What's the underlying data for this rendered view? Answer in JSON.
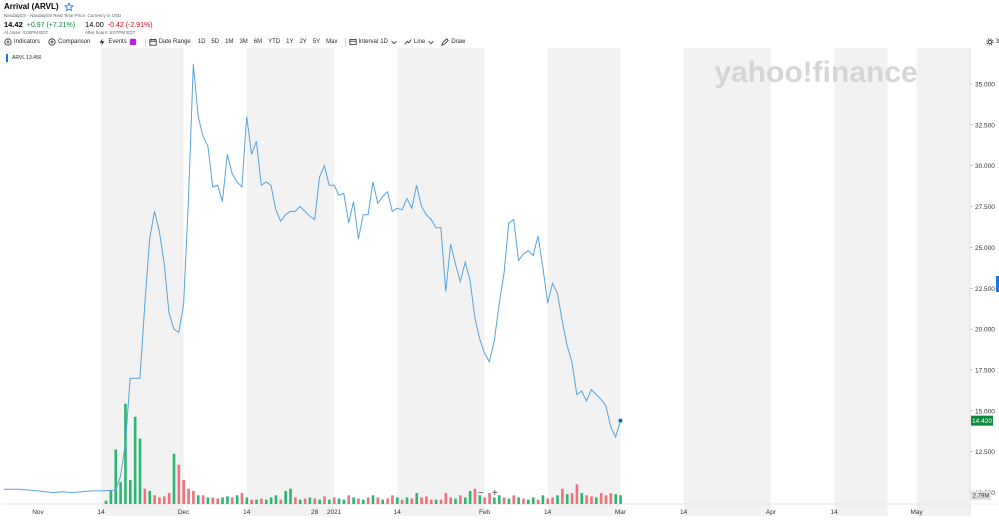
{
  "header": {
    "title": "Arrival (ARVL)",
    "source_line": "NasdaqGS - NasdaqGS Real Time Price. Currency in USD",
    "price": "14.42",
    "change": "+0.97 (+7.21%)",
    "close_note": "At close: 4:00PM EDT",
    "after_price": "14.00",
    "after_change": "-0.42 (-2.91%)",
    "after_note": "After hours: 5:07PM EDT"
  },
  "toolbar": {
    "indicators": "Indicators",
    "comparison": "Comparison",
    "events": "Events",
    "date_range": "Date Range",
    "ranges": [
      "1D",
      "5D",
      "1M",
      "3M",
      "6M",
      "YTD",
      "1Y",
      "2Y",
      "5Y",
      "Max"
    ],
    "interval_label": "Interval",
    "interval_value": "1D",
    "chart_type": "Line",
    "draw": "Draw",
    "settings_glyph": "3"
  },
  "symbol_badge": "ARVL 13.450",
  "watermark": "yahoo!finance",
  "zoom": {
    "minus": "−",
    "plus": "+"
  },
  "colors": {
    "line": "#5aa3dc",
    "up": "#2bb673",
    "down": "#f1707a",
    "last_price": "#0a8a3c",
    "shade": "#f2f2f2"
  },
  "chart_data": {
    "type": "line",
    "y_ticks": [
      "35.000",
      "32.500",
      "30.000",
      "27.500",
      "25.000",
      "22.500",
      "20.000",
      "17.500",
      "15.000",
      "12.500",
      "10.000"
    ],
    "y_tick_values": [
      35,
      32.5,
      30,
      27.5,
      25,
      22.5,
      20,
      17.5,
      15,
      12.5,
      10
    ],
    "ylim": [
      9.3,
      37.2
    ],
    "x_tick_labels": [
      "Nov",
      "14",
      "Dec",
      "14",
      "28",
      "2021",
      "14",
      "Feb",
      "14",
      "Mar",
      "14",
      "Apr",
      "14",
      "May"
    ],
    "x_tick_days": [
      0,
      13,
      30,
      43,
      57,
      61,
      74,
      92,
      105,
      120,
      133,
      151,
      164,
      181
    ],
    "xlim": [
      -7,
      192
    ],
    "last_price_label": "14.420",
    "volume_label": "2.79M",
    "shaded_day_ranges": [
      [
        13,
        30
      ],
      [
        43,
        61
      ],
      [
        74,
        92
      ],
      [
        105,
        120
      ],
      [
        133,
        151
      ],
      [
        164,
        175
      ],
      [
        181,
        192
      ]
    ],
    "prices": [
      [
        -7,
        10.2
      ],
      [
        -4,
        10.2
      ],
      [
        0,
        10.1
      ],
      [
        3,
        10.0
      ],
      [
        5,
        10.05
      ],
      [
        7,
        10.0
      ],
      [
        9,
        10.05
      ],
      [
        11,
        10.1
      ],
      [
        13,
        10.1
      ],
      [
        16,
        10.15
      ],
      [
        17,
        11.0
      ],
      [
        18,
        13.0
      ],
      [
        19,
        17.0
      ],
      [
        21,
        17.0
      ],
      [
        22,
        21.5
      ],
      [
        23,
        25.5
      ],
      [
        24,
        27.2
      ],
      [
        25,
        26.0
      ],
      [
        26,
        24.0
      ],
      [
        27,
        21.0
      ],
      [
        28,
        20.0
      ],
      [
        29,
        19.8
      ],
      [
        30,
        21.5
      ],
      [
        31,
        28.0
      ],
      [
        32,
        36.2
      ],
      [
        33,
        33.0
      ],
      [
        34,
        31.8
      ],
      [
        35,
        31.2
      ],
      [
        36,
        28.7
      ],
      [
        37,
        28.8
      ],
      [
        38,
        27.8
      ],
      [
        39,
        30.7
      ],
      [
        40,
        29.5
      ],
      [
        41,
        29.0
      ],
      [
        42,
        28.7
      ],
      [
        43,
        33.0
      ],
      [
        44,
        30.7
      ],
      [
        45,
        31.5
      ],
      [
        46,
        28.8
      ],
      [
        47,
        29.0
      ],
      [
        48,
        28.8
      ],
      [
        49,
        27.3
      ],
      [
        50,
        26.6
      ],
      [
        51,
        27.0
      ],
      [
        52,
        27.2
      ],
      [
        53,
        27.2
      ],
      [
        54,
        27.5
      ],
      [
        55,
        27.2
      ],
      [
        56,
        26.9
      ],
      [
        57,
        26.7
      ],
      [
        58,
        29.3
      ],
      [
        59,
        30.0
      ],
      [
        60,
        28.8
      ],
      [
        61,
        28.8
      ],
      [
        62,
        28.2
      ],
      [
        63,
        28.3
      ],
      [
        64,
        26.5
      ],
      [
        65,
        27.8
      ],
      [
        66,
        25.5
      ],
      [
        67,
        27.0
      ],
      [
        68,
        27.0
      ],
      [
        69,
        29.0
      ],
      [
        70,
        27.7
      ],
      [
        71,
        28.1
      ],
      [
        72,
        28.4
      ],
      [
        73,
        27.2
      ],
      [
        74,
        27.4
      ],
      [
        75,
        27.3
      ],
      [
        76,
        28.0
      ],
      [
        77,
        27.4
      ],
      [
        78,
        28.8
      ],
      [
        79,
        27.5
      ],
      [
        80,
        27.0
      ],
      [
        81,
        26.7
      ],
      [
        82,
        26.2
      ],
      [
        83,
        26.2
      ],
      [
        84,
        22.3
      ],
      [
        85,
        25.2
      ],
      [
        86,
        24.0
      ],
      [
        87,
        22.9
      ],
      [
        88,
        24.1
      ],
      [
        89,
        23.0
      ],
      [
        90,
        20.7
      ],
      [
        91,
        19.4
      ],
      [
        92,
        18.5
      ],
      [
        93,
        18.0
      ],
      [
        94,
        19.3
      ],
      [
        95,
        21.5
      ],
      [
        96,
        23.4
      ],
      [
        97,
        26.5
      ],
      [
        98,
        26.7
      ],
      [
        99,
        24.2
      ],
      [
        100,
        24.6
      ],
      [
        101,
        24.8
      ],
      [
        102,
        24.5
      ],
      [
        103,
        25.7
      ],
      [
        104,
        23.8
      ],
      [
        105,
        21.6
      ],
      [
        106,
        22.8
      ],
      [
        107,
        22.2
      ],
      [
        108,
        20.5
      ],
      [
        109,
        19.0
      ],
      [
        110,
        18.0
      ],
      [
        111,
        16.0
      ],
      [
        112,
        16.2
      ],
      [
        113,
        15.6
      ],
      [
        114,
        16.3
      ],
      [
        115,
        16.0
      ],
      [
        116,
        15.7
      ],
      [
        117,
        15.3
      ],
      [
        118,
        14.0
      ],
      [
        119,
        13.4
      ],
      [
        120,
        14.4
      ]
    ],
    "volumes": [
      [
        14,
        0.15,
        "up"
      ],
      [
        15,
        0.6,
        "up"
      ],
      [
        16,
        2.5,
        "up"
      ],
      [
        17,
        1.0,
        "up"
      ],
      [
        18,
        4.6,
        "up"
      ],
      [
        19,
        1.1,
        "up"
      ],
      [
        20,
        4.0,
        "up"
      ],
      [
        21,
        3.0,
        "up"
      ],
      [
        22,
        0.7,
        "down"
      ],
      [
        23,
        0.6,
        "up"
      ],
      [
        24,
        0.4,
        "down"
      ],
      [
        25,
        0.3,
        "down"
      ],
      [
        26,
        0.35,
        "down"
      ],
      [
        27,
        0.5,
        "down"
      ],
      [
        28,
        2.3,
        "up"
      ],
      [
        29,
        1.8,
        "down"
      ],
      [
        30,
        1.1,
        "down"
      ],
      [
        31,
        0.7,
        "down"
      ],
      [
        32,
        0.6,
        "down"
      ],
      [
        33,
        0.4,
        "up"
      ],
      [
        34,
        0.4,
        "down"
      ],
      [
        35,
        0.3,
        "up"
      ],
      [
        36,
        0.3,
        "down"
      ],
      [
        37,
        0.25,
        "down"
      ],
      [
        38,
        0.3,
        "up"
      ],
      [
        39,
        0.35,
        "up"
      ],
      [
        40,
        0.3,
        "down"
      ],
      [
        41,
        0.4,
        "up"
      ],
      [
        42,
        0.5,
        "down"
      ],
      [
        43,
        0.3,
        "up"
      ],
      [
        44,
        0.2,
        "down"
      ],
      [
        45,
        0.2,
        "up"
      ],
      [
        46,
        0.25,
        "down"
      ],
      [
        47,
        0.2,
        "up"
      ],
      [
        48,
        0.3,
        "up"
      ],
      [
        49,
        0.4,
        "up"
      ],
      [
        50,
        0.2,
        "down"
      ],
      [
        51,
        0.6,
        "up"
      ],
      [
        52,
        0.7,
        "up"
      ],
      [
        53,
        0.3,
        "down"
      ],
      [
        54,
        0.2,
        "up"
      ],
      [
        55,
        0.25,
        "down"
      ],
      [
        56,
        0.3,
        "up"
      ],
      [
        57,
        0.25,
        "down"
      ],
      [
        58,
        0.2,
        "up"
      ],
      [
        59,
        0.35,
        "down"
      ],
      [
        60,
        0.2,
        "up"
      ],
      [
        61,
        0.3,
        "down"
      ],
      [
        62,
        0.25,
        "up"
      ],
      [
        63,
        0.2,
        "up"
      ],
      [
        64,
        0.4,
        "down"
      ],
      [
        65,
        0.3,
        "up"
      ],
      [
        66,
        0.25,
        "down"
      ],
      [
        67,
        0.2,
        "up"
      ],
      [
        68,
        0.3,
        "down"
      ],
      [
        69,
        0.4,
        "up"
      ],
      [
        70,
        0.3,
        "down"
      ],
      [
        71,
        0.2,
        "up"
      ],
      [
        72,
        0.25,
        "down"
      ],
      [
        73,
        0.4,
        "down"
      ],
      [
        74,
        0.3,
        "up"
      ],
      [
        75,
        0.2,
        "down"
      ],
      [
        76,
        0.3,
        "up"
      ],
      [
        77,
        0.25,
        "down"
      ],
      [
        78,
        0.5,
        "up"
      ],
      [
        79,
        0.3,
        "down"
      ],
      [
        80,
        0.35,
        "down"
      ],
      [
        81,
        0.2,
        "down"
      ],
      [
        82,
        0.2,
        "up"
      ],
      [
        83,
        0.2,
        "down"
      ],
      [
        84,
        0.5,
        "down"
      ],
      [
        85,
        0.3,
        "down"
      ],
      [
        86,
        0.25,
        "up"
      ],
      [
        87,
        0.4,
        "down"
      ],
      [
        88,
        0.3,
        "up"
      ],
      [
        89,
        0.6,
        "up"
      ],
      [
        90,
        0.7,
        "down"
      ],
      [
        91,
        0.4,
        "up"
      ],
      [
        92,
        0.3,
        "down"
      ],
      [
        93,
        0.5,
        "down"
      ],
      [
        94,
        0.3,
        "up"
      ],
      [
        95,
        0.4,
        "up"
      ],
      [
        96,
        0.3,
        "down"
      ],
      [
        97,
        0.25,
        "up"
      ],
      [
        98,
        0.4,
        "down"
      ],
      [
        99,
        0.3,
        "up"
      ],
      [
        100,
        0.25,
        "down"
      ],
      [
        101,
        0.2,
        "up"
      ],
      [
        102,
        0.3,
        "up"
      ],
      [
        103,
        0.2,
        "down"
      ],
      [
        104,
        0.4,
        "up"
      ],
      [
        105,
        0.25,
        "down"
      ],
      [
        106,
        0.3,
        "down"
      ],
      [
        107,
        0.4,
        "up"
      ],
      [
        108,
        0.7,
        "down"
      ],
      [
        109,
        0.45,
        "up"
      ],
      [
        110,
        0.5,
        "down"
      ],
      [
        111,
        0.9,
        "down"
      ],
      [
        112,
        0.5,
        "up"
      ],
      [
        113,
        0.4,
        "down"
      ],
      [
        114,
        0.35,
        "down"
      ],
      [
        115,
        0.3,
        "up"
      ],
      [
        116,
        0.5,
        "down"
      ],
      [
        117,
        0.4,
        "down"
      ],
      [
        118,
        0.5,
        "down"
      ],
      [
        119,
        0.45,
        "up"
      ],
      [
        120,
        0.4,
        "up"
      ]
    ],
    "volume_max_label_units": 5.0
  }
}
